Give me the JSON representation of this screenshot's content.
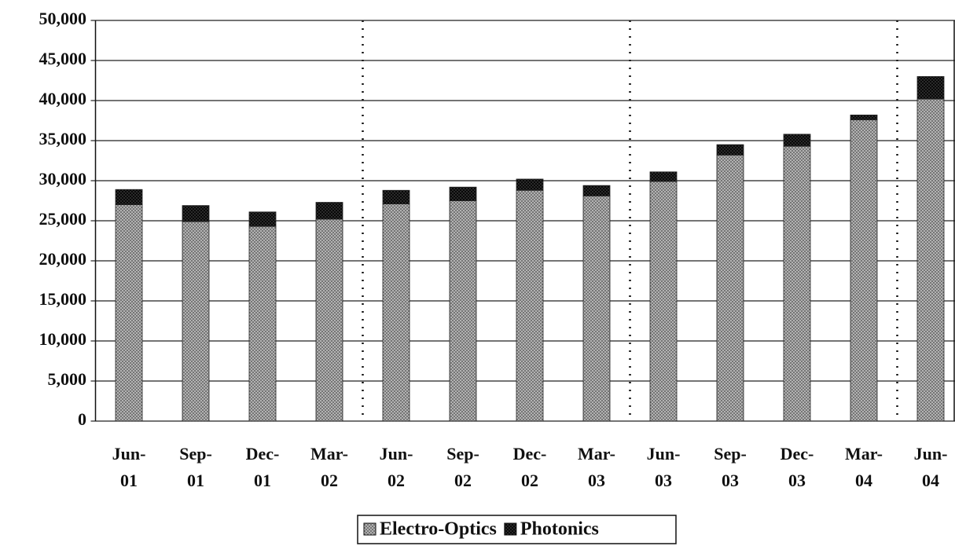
{
  "chart_data": {
    "type": "stacked_bar",
    "categories": [
      "Jun-01",
      "Sep-01",
      "Dec-01",
      "Mar-02",
      "Jun-02",
      "Sep-02",
      "Dec-02",
      "Mar-03",
      "Jun-03",
      "Sep-03",
      "Dec-03",
      "Mar-04",
      "Jun-04"
    ],
    "series": [
      {
        "name": "Electro-Optics",
        "color": "#c4c4c4",
        "values": [
          27000,
          24900,
          24300,
          25200,
          27100,
          27500,
          28800,
          28100,
          29900,
          33200,
          34300,
          37600,
          40200
        ]
      },
      {
        "name": "Photonics",
        "color": "#333333",
        "values": [
          1900,
          2000,
          1800,
          2100,
          1700,
          1700,
          1400,
          1300,
          1200,
          1300,
          1500,
          600,
          2800
        ]
      }
    ],
    "ylim": [
      0,
      50000
    ],
    "yticks": [
      0,
      {
        "value": 5000,
        "label": "5,000"
      },
      {
        "value": 10000,
        "label": "10,000"
      },
      {
        "value": 15000,
        "label": "15,000"
      },
      {
        "value": 20000,
        "label": "20,000"
      },
      {
        "value": 25000,
        "label": "25,000"
      },
      {
        "value": 30000,
        "label": "30,000"
      },
      {
        "value": 35000,
        "label": "35,000"
      },
      {
        "value": 40000,
        "label": "40,000"
      },
      {
        "value": 45000,
        "label": "45,000"
      },
      {
        "value": 50000,
        "label": "50,000"
      }
    ],
    "grid": true
  }
}
